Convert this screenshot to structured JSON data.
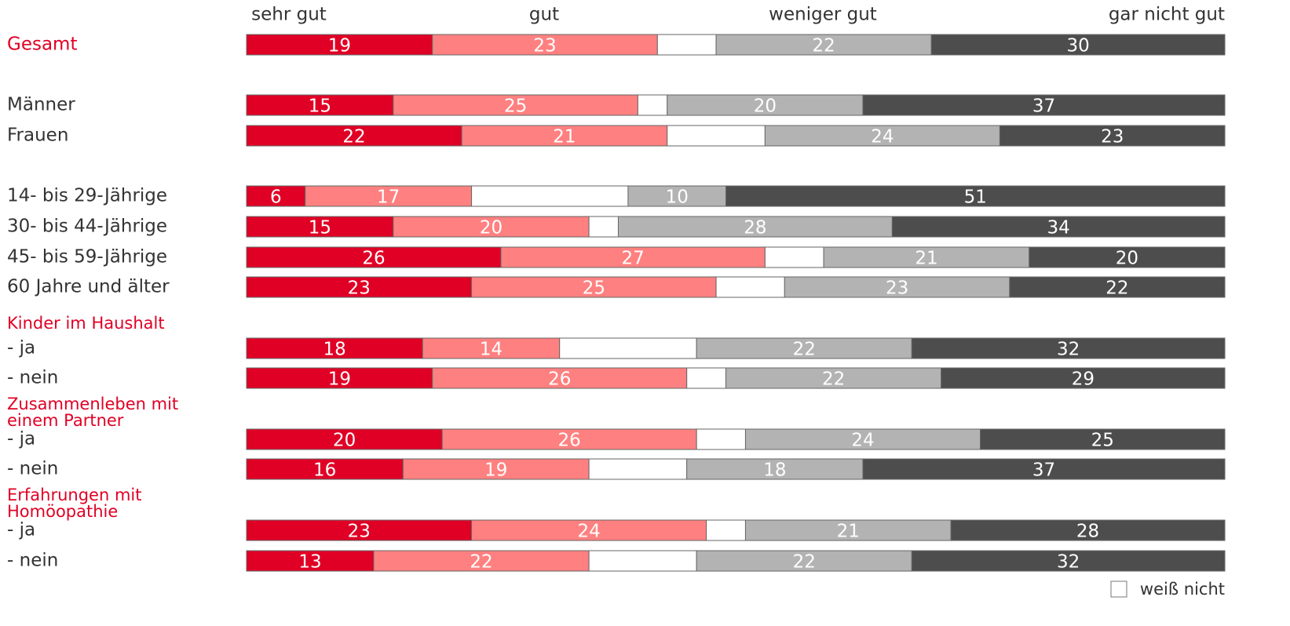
{
  "chart_data": {
    "type": "stacked_bar_horizontal",
    "categories": [
      "Gesamt",
      "Männer",
      "Frauen",
      "14- bis 29-Jährige",
      "30- bis 44-Jährige",
      "45- bis 59-Jährige",
      "60 Jahre und älter",
      "- ja",
      "- nein",
      "- ja",
      "- nein",
      "- ja",
      "- nein"
    ],
    "groups": [
      {
        "lines": [
          "Kinder im Haushalt"
        ]
      },
      {
        "lines": [
          "Zusammenleben mit",
          "einem Partner"
        ]
      },
      {
        "lines": [
          "Erfahrungen mit",
          "Homöopathie"
        ]
      }
    ],
    "highlight_color": "#e00025",
    "xlim": [
      0,
      100
    ],
    "series": [
      {
        "name": "sehr gut",
        "color": "#e00025",
        "values": [
          19,
          15,
          22,
          6,
          15,
          26,
          23,
          18,
          19,
          20,
          16,
          23,
          13
        ]
      },
      {
        "name": "gut",
        "color": "#ff8080",
        "values": [
          23,
          25,
          21,
          17,
          20,
          27,
          25,
          14,
          26,
          26,
          19,
          24,
          22
        ]
      },
      {
        "name": "weiß nicht",
        "color": "#ffffff",
        "labels": false,
        "values": [
          6,
          3,
          10,
          16,
          3,
          6,
          7,
          14,
          4,
          5,
          10,
          4,
          11
        ]
      },
      {
        "name": "weniger gut",
        "color": "#b3b3b3",
        "values": [
          22,
          20,
          24,
          10,
          28,
          21,
          23,
          22,
          22,
          24,
          18,
          21,
          22
        ]
      },
      {
        "name": "gar nicht gut",
        "color": "#4d4d4d",
        "values": [
          30,
          37,
          23,
          51,
          34,
          20,
          22,
          32,
          29,
          25,
          37,
          28,
          32
        ]
      }
    ]
  }
}
